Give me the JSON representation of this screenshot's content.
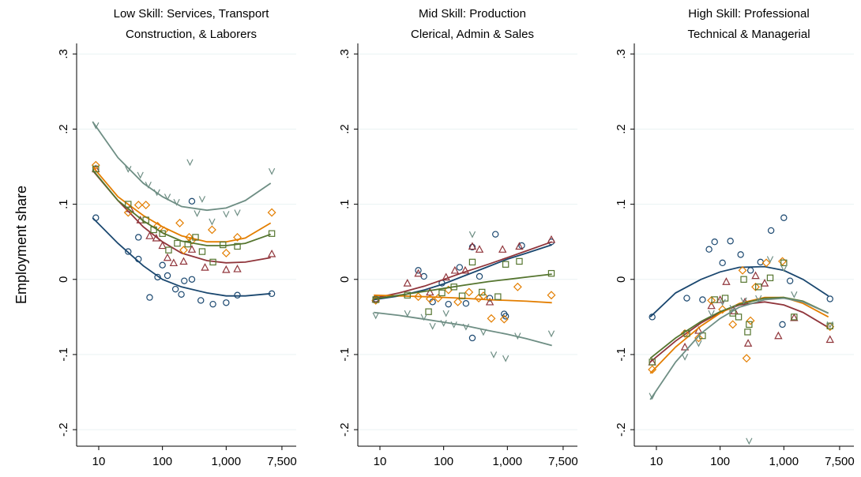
{
  "ylabel": "Employment share",
  "chart_data": [
    {
      "type": "scatter",
      "title": "Low Skill: Services, Transport",
      "subtitle": "Construction, & Laborers",
      "xscale": "log",
      "xlim": [
        4.5,
        10000
      ],
      "ylim": [
        -0.222,
        0.314
      ],
      "grid": true,
      "xticks": [
        10,
        100,
        {
          "value": 1000,
          "label": "1,000"
        },
        {
          "value": 7500,
          "label": "7,500"
        }
      ],
      "yticks": [
        {
          "value": -0.2,
          "label": "-.2"
        },
        {
          "value": -0.1,
          "label": "-.1"
        },
        0,
        {
          "value": 0.1,
          "label": ".1"
        },
        {
          "value": 0.2,
          "label": ".2"
        },
        {
          "value": 0.3,
          "label": ".3"
        }
      ],
      "fit_x": [
        8,
        20,
        50,
        100,
        200,
        500,
        1000,
        2000,
        5000
      ],
      "series": [
        {
          "color": "#1a476f",
          "marker": "circle",
          "x": [
            9,
            29,
            42,
            63,
            84,
            100,
            120,
            160,
            220,
            290,
            290,
            400,
            620,
            1000,
            1500,
            5200,
            42,
            198
          ],
          "values": [
            0.082,
            0.037,
            0.027,
            -0.024,
            0.003,
            0.019,
            0.005,
            -0.013,
            -0.002,
            0.104,
            0,
            -0.028,
            -0.033,
            -0.031,
            -0.021,
            -0.019,
            0.056,
            -0.02
          ],
          "fit": [
            0.082,
            0.048,
            0.018,
            0.0,
            -0.01,
            -0.018,
            -0.022,
            -0.022,
            -0.019
          ]
        },
        {
          "color": "#90353b",
          "marker": "triangle",
          "x": [
            9,
            31,
            45,
            63,
            80,
            100,
            120,
            150,
            215,
            290,
            465,
            1000,
            1500,
            5200
          ],
          "values": [
            0.147,
            0.094,
            0.079,
            0.058,
            0.055,
            0.045,
            0.029,
            0.022,
            0.024,
            0.04,
            0.016,
            0.013,
            0.014,
            0.034
          ],
          "fit": [
            0.145,
            0.105,
            0.07,
            0.05,
            0.035,
            0.025,
            0.022,
            0.023,
            0.029
          ]
        },
        {
          "color": "#e37e00",
          "marker": "diamond",
          "x": [
            9,
            29,
            42,
            55,
            84,
            106,
            187,
            290,
            600,
            1000,
            1500,
            5200,
            215,
            263
          ],
          "values": [
            0.152,
            0.089,
            0.099,
            0.099,
            0.071,
            0.065,
            0.075,
            0.052,
            0.066,
            0.035,
            0.056,
            0.089,
            0.039,
            0.056
          ],
          "fit": [
            0.15,
            0.11,
            0.085,
            0.07,
            0.058,
            0.05,
            0.05,
            0.055,
            0.075
          ]
        },
        {
          "color": "#55752f",
          "marker": "square",
          "x": [
            9,
            29,
            55,
            73,
            100,
            125,
            171,
            250,
            330,
            620,
            890,
            1500,
            5200,
            420
          ],
          "values": [
            0.147,
            0.1,
            0.079,
            0.066,
            0.061,
            0.039,
            0.048,
            0.047,
            0.056,
            0.023,
            0.046,
            0.044,
            0.061,
            0.037
          ],
          "fit": [
            0.146,
            0.105,
            0.078,
            0.062,
            0.051,
            0.045,
            0.045,
            0.048,
            0.06
          ]
        },
        {
          "color": "#6e8e84",
          "marker": "v",
          "x": [
            9,
            29,
            45,
            60,
            82,
            120,
            167,
            270,
            350,
            600,
            1000,
            1500,
            5200,
            420
          ],
          "values": [
            0.205,
            0.147,
            0.139,
            0.126,
            0.116,
            0.11,
            0.103,
            0.156,
            0.088,
            0.077,
            0.087,
            0.089,
            0.144,
            0.107
          ],
          "fit": [
            0.21,
            0.162,
            0.128,
            0.11,
            0.097,
            0.092,
            0.095,
            0.105,
            0.128
          ]
        }
      ]
    },
    {
      "type": "scatter",
      "title": "Mid Skill: Production",
      "subtitle": "Clerical, Admin & Sales",
      "xscale": "log",
      "xlim": [
        4.5,
        10000
      ],
      "ylim": [
        -0.222,
        0.314
      ],
      "grid": true,
      "xticks": [
        10,
        100,
        {
          "value": 1000,
          "label": "1,000"
        },
        {
          "value": 7500,
          "label": "7,500"
        }
      ],
      "yticks": [
        {
          "value": -0.2,
          "label": "-.2"
        },
        {
          "value": -0.1,
          "label": "-.1"
        },
        0,
        {
          "value": 0.1,
          "label": ".1"
        },
        {
          "value": 0.2,
          "label": ".2"
        },
        {
          "value": 0.3,
          "label": ".3"
        }
      ],
      "fit_x": [
        8,
        20,
        50,
        100,
        200,
        500,
        1000,
        2000,
        5000
      ],
      "series": [
        {
          "color": "#1a476f",
          "marker": "circle",
          "x": [
            8.6,
            40,
            49,
            67,
            94,
            119,
            178,
            224,
            282,
            365,
            530,
            890,
            1680,
            4900,
            650,
            940,
            282
          ],
          "values": [
            -0.026,
            0.012,
            0.004,
            -0.03,
            -0.005,
            -0.033,
            0.016,
            -0.032,
            0.043,
            0.004,
            -0.025,
            -0.046,
            0.045,
            0.05,
            0.06,
            -0.049,
            -0.078
          ],
          "fit": [
            -0.027,
            -0.022,
            -0.014,
            -0.006,
            0.004,
            0.017,
            0.027,
            0.035,
            0.046
          ]
        },
        {
          "color": "#90353b",
          "marker": "triangle",
          "x": [
            8.6,
            27,
            40,
            61,
            109,
            150,
            218,
            282,
            365,
            530,
            840,
            1540,
            4900
          ],
          "values": [
            -0.026,
            -0.005,
            0.008,
            -0.017,
            0.003,
            0.012,
            0.012,
            0.044,
            0.04,
            -0.03,
            0.04,
            0.044,
            0.053
          ],
          "fit": [
            -0.025,
            -0.018,
            -0.009,
            0.0,
            0.009,
            0.02,
            0.029,
            0.038,
            0.05
          ]
        },
        {
          "color": "#e37e00",
          "marker": "diamond",
          "x": [
            8.6,
            40,
            61,
            82,
            119,
            167,
            250,
            355,
            560,
            890,
            1450,
            4900,
            420
          ],
          "values": [
            -0.028,
            -0.023,
            -0.026,
            -0.025,
            -0.014,
            -0.03,
            -0.017,
            -0.025,
            -0.052,
            -0.053,
            -0.01,
            -0.021,
            -0.022
          ],
          "fit": [
            -0.021,
            -0.022,
            -0.023,
            -0.024,
            -0.025,
            -0.027,
            -0.028,
            -0.029,
            -0.031
          ]
        },
        {
          "color": "#55752f",
          "marker": "square",
          "x": [
            8.6,
            27,
            58,
            94,
            145,
            195,
            282,
            400,
            710,
            940,
            1540,
            4900
          ],
          "values": [
            -0.027,
            -0.021,
            -0.043,
            -0.018,
            -0.01,
            -0.022,
            0.023,
            -0.017,
            -0.023,
            0.02,
            0.024,
            0.008
          ],
          "fit": [
            -0.026,
            -0.021,
            -0.016,
            -0.012,
            -0.008,
            -0.003,
            0.0,
            0.003,
            0.007
          ]
        },
        {
          "color": "#6e8e84",
          "marker": "v",
          "x": [
            8.6,
            27,
            49,
            67,
            100,
            145,
            224,
            282,
            420,
            610,
            940,
            1450,
            4900,
            109
          ],
          "values": [
            -0.048,
            -0.045,
            -0.05,
            -0.062,
            -0.058,
            -0.06,
            -0.063,
            0.06,
            -0.07,
            -0.1,
            -0.105,
            -0.075,
            -0.072,
            -0.045
          ],
          "fit": [
            -0.044,
            -0.048,
            -0.053,
            -0.057,
            -0.061,
            -0.068,
            -0.073,
            -0.079,
            -0.088
          ]
        }
      ]
    },
    {
      "type": "scatter",
      "title": "High Skill: Professional",
      "subtitle": "Technical & Managerial",
      "xscale": "log",
      "xlim": [
        4.5,
        10000
      ],
      "ylim": [
        -0.222,
        0.314
      ],
      "grid": true,
      "xticks": [
        10,
        100,
        {
          "value": 1000,
          "label": "1,000"
        },
        {
          "value": 7500,
          "label": "7,500"
        }
      ],
      "yticks": [
        {
          "value": -0.2,
          "label": "-.2"
        },
        {
          "value": -0.1,
          "label": "-.1"
        },
        0,
        {
          "value": 0.1,
          "label": ".1"
        },
        {
          "value": 0.2,
          "label": ".2"
        },
        {
          "value": 0.3,
          "label": ".3"
        }
      ],
      "fit_x": [
        8,
        20,
        50,
        100,
        200,
        500,
        1000,
        2000,
        5000
      ],
      "series": [
        {
          "color": "#1a476f",
          "marker": "circle",
          "x": [
            8.6,
            30,
            53,
            67,
            82,
            109,
            145,
            210,
            300,
            430,
            630,
            1000,
            5300,
            1250,
            950
          ],
          "values": [
            -0.05,
            -0.025,
            -0.027,
            0.04,
            0.05,
            0.022,
            0.051,
            0.033,
            0.012,
            0.023,
            0.065,
            0.082,
            -0.026,
            -0.002,
            -0.06
          ],
          "fit": [
            -0.05,
            -0.018,
            0.0,
            0.01,
            0.016,
            0.017,
            0.012,
            0.0,
            -0.022
          ]
        },
        {
          "color": "#90353b",
          "marker": "triangle",
          "x": [
            8.6,
            28,
            46,
            73,
            100,
            125,
            167,
            245,
            275,
            360,
            500,
            820,
            1450,
            5300
          ],
          "values": [
            -0.11,
            -0.09,
            -0.068,
            -0.035,
            -0.027,
            -0.003,
            -0.042,
            -0.03,
            -0.085,
            0.005,
            -0.005,
            -0.075,
            -0.051,
            -0.08
          ],
          "fit": [
            -0.11,
            -0.082,
            -0.058,
            -0.044,
            -0.034,
            -0.03,
            -0.034,
            -0.044,
            -0.064
          ]
        },
        {
          "color": "#e37e00",
          "marker": "diamond",
          "x": [
            8.6,
            28,
            46,
            73,
            109,
            158,
            225,
            260,
            360,
            530,
            950,
            5300,
            300
          ],
          "values": [
            -0.12,
            -0.072,
            -0.078,
            -0.028,
            -0.04,
            -0.06,
            0.012,
            -0.105,
            -0.01,
            0.022,
            0.024,
            -0.063,
            -0.055
          ],
          "fit": [
            -0.125,
            -0.09,
            -0.062,
            -0.045,
            -0.032,
            -0.024,
            -0.024,
            -0.032,
            -0.05
          ]
        },
        {
          "color": "#55752f",
          "marker": "square",
          "x": [
            8.6,
            30,
            53,
            82,
            120,
            158,
            235,
            285,
            400,
            610,
            1000,
            1450,
            5300,
            195,
            270
          ],
          "values": [
            -0.11,
            -0.072,
            -0.075,
            -0.027,
            -0.025,
            -0.045,
            0.0,
            -0.06,
            -0.01,
            0.002,
            0.022,
            -0.05,
            -0.062,
            -0.05,
            -0.07
          ],
          "fit": [
            -0.105,
            -0.078,
            -0.056,
            -0.043,
            -0.033,
            -0.025,
            -0.024,
            -0.029,
            -0.045
          ]
        },
        {
          "color": "#6e8e84",
          "marker": "v",
          "x": [
            8.6,
            28,
            46,
            73,
            109,
            158,
            235,
            285,
            400,
            610,
            1000,
            1450,
            5300
          ],
          "values": [
            -0.155,
            -0.103,
            -0.085,
            -0.045,
            -0.03,
            -0.038,
            -0.028,
            -0.215,
            -0.025,
            0.027,
            0.015,
            -0.02,
            -0.06
          ],
          "fit": [
            -0.16,
            -0.11,
            -0.072,
            -0.052,
            -0.037,
            -0.027,
            -0.025,
            -0.03,
            -0.045
          ]
        }
      ]
    }
  ]
}
